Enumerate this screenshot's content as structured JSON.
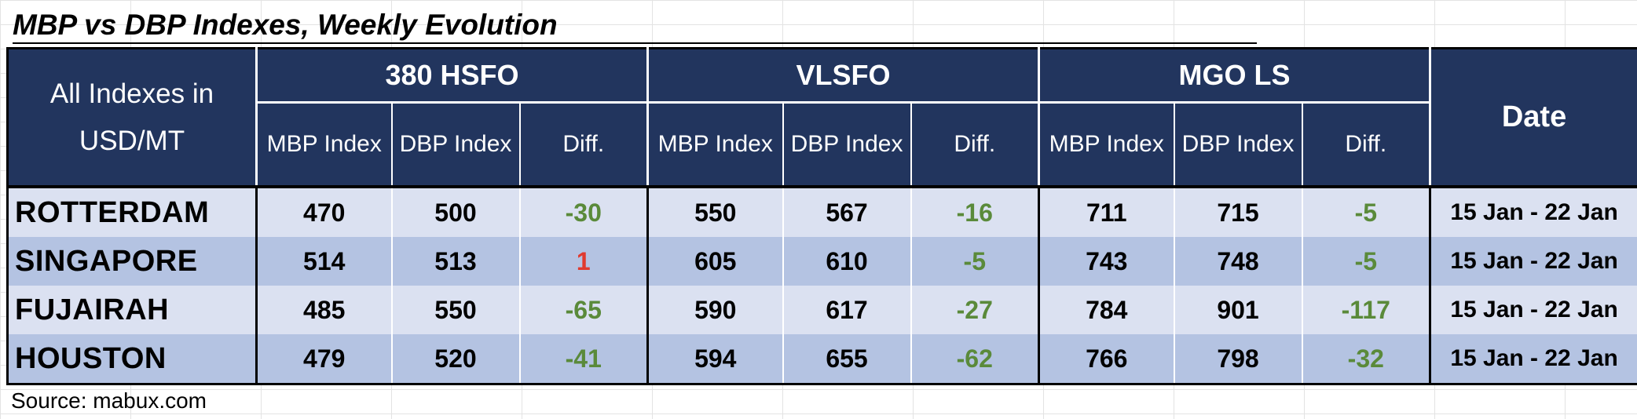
{
  "title": "MBP vs DBP Indexes, Weekly Evolution",
  "corner_label": "All Indexes in USD/MT",
  "groups": [
    "380 HSFO",
    "VLSFO",
    "MGO LS"
  ],
  "sub_headers": [
    "MBP Index",
    "DBP Index",
    "Diff."
  ],
  "date_header": "Date",
  "source": "Source: mabux.com",
  "colors": {
    "header_bg": "#22355e",
    "row_light": "#dbe1f1",
    "row_dark": "#b4c3e2",
    "negative": "#5a8a3a",
    "positive": "#e03a2f"
  },
  "chart_data": {
    "type": "table",
    "title": "MBP vs DBP Indexes, Weekly Evolution",
    "unit": "USD/MT",
    "columns": [
      "380 HSFO MBP Index",
      "380 HSFO DBP Index",
      "380 HSFO Diff.",
      "VLSFO MBP Index",
      "VLSFO DBP Index",
      "VLSFO Diff.",
      "MGO LS MBP Index",
      "MGO LS DBP Index",
      "MGO LS Diff.",
      "Date"
    ],
    "rows": [
      {
        "port": "ROTTERDAM",
        "values": [
          "470",
          "500",
          "-30",
          "550",
          "567",
          "-16",
          "711",
          "715",
          "-5"
        ],
        "date": "15 Jan - 22 Jan"
      },
      {
        "port": "SINGAPORE",
        "values": [
          "514",
          "513",
          "1",
          "605",
          "610",
          "-5",
          "743",
          "748",
          "-5"
        ],
        "date": "15 Jan - 22 Jan"
      },
      {
        "port": "FUJAIRAH",
        "values": [
          "485",
          "550",
          "-65",
          "590",
          "617",
          "-27",
          "784",
          "901",
          "-117"
        ],
        "date": "15 Jan - 22 Jan"
      },
      {
        "port": "HOUSTON",
        "values": [
          "479",
          "520",
          "-41",
          "594",
          "655",
          "-62",
          "766",
          "798",
          "-32"
        ],
        "date": "15 Jan - 22 Jan"
      }
    ]
  }
}
